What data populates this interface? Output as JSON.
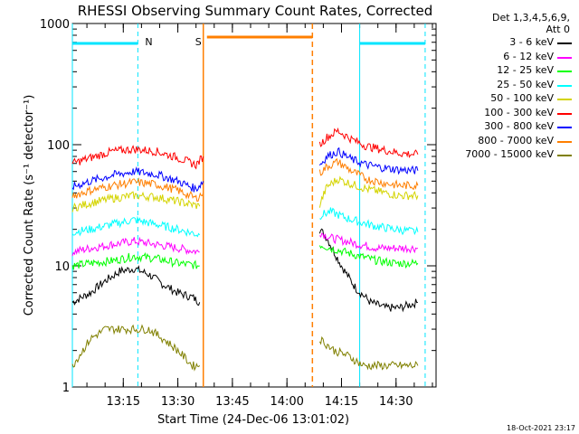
{
  "chart_data": {
    "type": "line",
    "title": "RHESSI Observing Summary Count Rates, Corrected",
    "xlabel": "Start Time (24-Dec-06 13:01:02)",
    "ylabel": "Corrected Count Rate (s⁻¹ detector⁻¹)",
    "ylog": true,
    "ylim": [
      1,
      1000
    ],
    "xlim": [
      "13:01",
      "14:41"
    ],
    "x_ticks": [
      "13:15",
      "13:30",
      "13:45",
      "14:00",
      "14:15",
      "14:30"
    ],
    "y_ticks": [
      "1",
      "10",
      "100",
      "1000"
    ],
    "legend_header": [
      "Det 1,3,4,5,6,9,",
      "Att 0"
    ],
    "footer_date": "18-Oct-2021 23:17",
    "flags": [
      {
        "label": "N",
        "color": "#00e5ff",
        "start": "13:01",
        "end": "13:19"
      },
      {
        "label": "S",
        "color": "#ff7f00",
        "start": "13:38",
        "end": "14:07"
      },
      {
        "label": "",
        "color": "#00e5ff",
        "start": "14:20",
        "end": "14:38"
      }
    ],
    "eclipse_markers": [
      "13:37",
      "14:07"
    ],
    "night_markers": [
      "13:19",
      "14:38"
    ],
    "day_markers": [
      "13:01",
      "14:20"
    ],
    "series": [
      {
        "name": "3 - 6 keV",
        "color": "#000000",
        "segments": [
          {
            "x": [
              "13:01",
              "13:06",
              "13:10",
              "13:14",
              "13:18",
              "13:22",
              "13:26",
              "13:30",
              "13:34",
              "13:36"
            ],
            "y": [
              5,
              6,
              7.5,
              9,
              9.5,
              8.5,
              7,
              6,
              5.5,
              5
            ]
          },
          {
            "x": [
              "14:09",
              "14:11",
              "14:13",
              "14:15",
              "14:17",
              "14:19",
              "14:23",
              "14:27",
              "14:31",
              "14:36"
            ],
            "y": [
              20,
              17,
              13,
              10,
              8,
              6.5,
              5,
              4.5,
              4.5,
              5
            ]
          }
        ]
      },
      {
        "name": "6 - 12 keV",
        "color": "#ff00ff",
        "segments": [
          {
            "x": [
              "13:01",
              "13:06",
              "13:12",
              "13:18",
              "13:24",
              "13:30",
              "13:36"
            ],
            "y": [
              13,
              14,
              15,
              16,
              15,
              14,
              13
            ]
          },
          {
            "x": [
              "14:09",
              "14:12",
              "14:16",
              "14:20",
              "14:25",
              "14:30",
              "14:36"
            ],
            "y": [
              19,
              17,
              16,
              15,
              14,
              14,
              14
            ]
          }
        ]
      },
      {
        "name": "12 - 25 keV",
        "color": "#00ff00",
        "segments": [
          {
            "x": [
              "13:01",
              "13:06",
              "13:12",
              "13:18",
              "13:24",
              "13:30",
              "13:36"
            ],
            "y": [
              10,
              10.5,
              11,
              12,
              11.5,
              10.5,
              10
            ]
          },
          {
            "x": [
              "14:09",
              "14:12",
              "14:16",
              "14:20",
              "14:25",
              "14:30",
              "14:36"
            ],
            "y": [
              15,
              14,
              13,
              12,
              11,
              10.5,
              10.5
            ]
          }
        ]
      },
      {
        "name": "25 - 50 keV",
        "color": "#00ffff",
        "segments": [
          {
            "x": [
              "13:01",
              "13:06",
              "13:12",
              "13:18",
              "13:24",
              "13:30",
              "13:36"
            ],
            "y": [
              19,
              20,
              22,
              24,
              22,
              20,
              18
            ]
          },
          {
            "x": [
              "14:09",
              "14:12",
              "14:16",
              "14:20",
              "14:25",
              "14:30",
              "14:36"
            ],
            "y": [
              26,
              28,
              25,
              23,
              21,
              20,
              19
            ]
          }
        ]
      },
      {
        "name": "50 - 100 keV",
        "color": "#d4d400",
        "segments": [
          {
            "x": [
              "13:01",
              "13:06",
              "13:12",
              "13:18",
              "13:24",
              "13:30",
              "13:36"
            ],
            "y": [
              30,
              33,
              36,
              38,
              37,
              34,
              31
            ]
          },
          {
            "x": [
              "14:09",
              "14:11",
              "14:14",
              "14:18",
              "14:22",
              "14:27",
              "14:31",
              "14:36"
            ],
            "y": [
              32,
              45,
              52,
              47,
              43,
              40,
              38,
              38
            ]
          }
        ]
      },
      {
        "name": "100 - 300 keV",
        "color": "#ff0000",
        "segments": [
          {
            "x": [
              "13:01",
              "13:06",
              "13:12",
              "13:18",
              "13:24",
              "13:30",
              "13:35",
              "13:37"
            ],
            "y": [
              70,
              78,
              88,
              92,
              88,
              78,
              68,
              80
            ]
          },
          {
            "x": [
              "14:09",
              "14:11",
              "14:14",
              "14:18",
              "14:22",
              "14:27",
              "14:31",
              "14:36"
            ],
            "y": [
              100,
              115,
              130,
              110,
              97,
              90,
              85,
              83
            ]
          }
        ]
      },
      {
        "name": "300 - 800 keV",
        "color": "#0000ff",
        "segments": [
          {
            "x": [
              "13:01",
              "13:06",
              "13:12",
              "13:18",
              "13:24",
              "13:30",
              "13:35",
              "13:37"
            ],
            "y": [
              45,
              50,
              56,
              60,
              57,
              50,
              43,
              50
            ]
          },
          {
            "x": [
              "14:09",
              "14:11",
              "14:14",
              "14:18",
              "14:22",
              "14:27",
              "14:31",
              "14:36"
            ],
            "y": [
              68,
              80,
              88,
              75,
              68,
              64,
              62,
              61
            ]
          }
        ]
      },
      {
        "name": "800 - 7000 keV",
        "color": "#ff7f00",
        "segments": [
          {
            "x": [
              "13:01",
              "13:06",
              "13:12",
              "13:18",
              "13:24",
              "13:30",
              "13:35",
              "13:37"
            ],
            "y": [
              38,
              42,
              46,
              49,
              47,
              42,
              36,
              40
            ]
          },
          {
            "x": [
              "14:09",
              "14:11",
              "14:14",
              "14:18",
              "14:22",
              "14:27",
              "14:31",
              "14:36"
            ],
            "y": [
              58,
              66,
              72,
              60,
              52,
              48,
              46,
              46
            ]
          }
        ]
      },
      {
        "name": "7000 - 15000 keV",
        "color": "#808000",
        "segments": [
          {
            "x": [
              "13:01",
              "13:06",
              "13:10",
              "13:14",
              "13:18",
              "13:22",
              "13:26",
              "13:30",
              "13:34",
              "13:36"
            ],
            "y": [
              1.5,
              2.5,
              3,
              3,
              3,
              3,
              2.5,
              2,
              1.5,
              1.5
            ]
          },
          {
            "x": [
              "14:09",
              "14:13",
              "14:17",
              "14:21",
              "14:25",
              "14:29",
              "14:33",
              "14:36"
            ],
            "y": [
              2.5,
              2,
              1.8,
              1.5,
              1.5,
              1.5,
              1.5,
              1.5
            ]
          }
        ]
      }
    ]
  }
}
